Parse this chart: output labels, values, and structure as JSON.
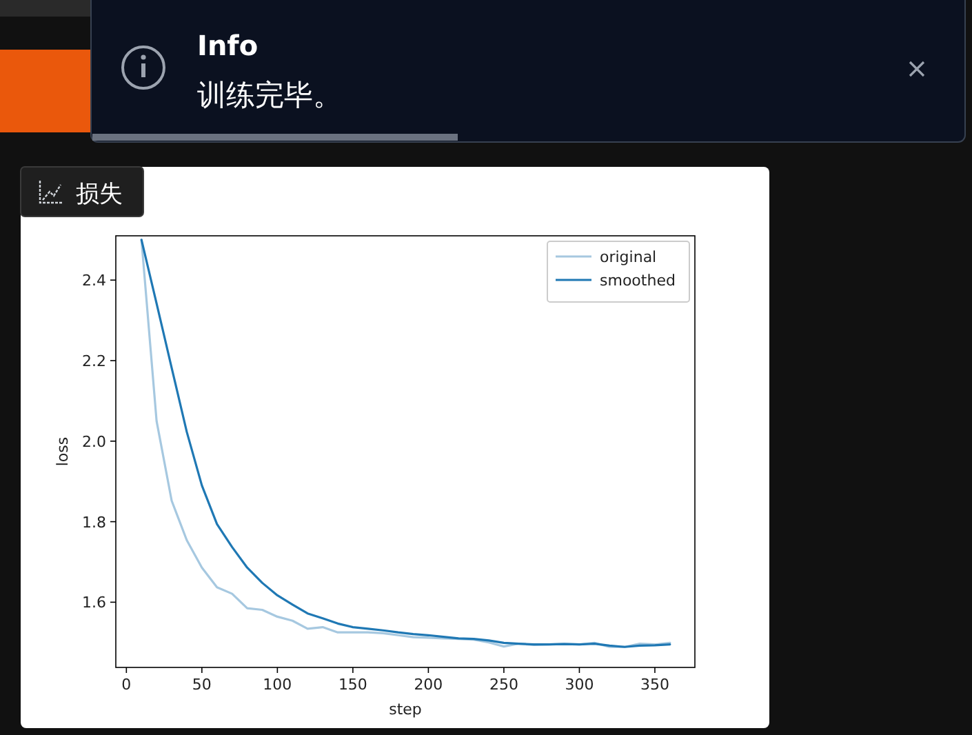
{
  "chart_data": {
    "type": "line",
    "title": "损失",
    "annotations": [
      "Info",
      "训练完毕。"
    ],
    "xlabel": "step",
    "ylabel": "loss",
    "x": [
      10,
      20,
      30,
      40,
      50,
      60,
      70,
      80,
      90,
      100,
      110,
      120,
      130,
      140,
      150,
      160,
      170,
      180,
      190,
      200,
      210,
      220,
      230,
      240,
      250,
      260,
      270,
      280,
      290,
      300,
      310,
      320,
      330,
      340,
      350,
      360
    ],
    "series": [
      {
        "name": "original",
        "color": "#a6c8e0",
        "values": [
          2.5,
          2.05,
          1.852,
          1.754,
          1.686,
          1.637,
          1.621,
          1.585,
          1.581,
          1.564,
          1.554,
          1.534,
          1.538,
          1.525,
          1.525,
          1.525,
          1.523,
          1.518,
          1.513,
          1.512,
          1.51,
          1.509,
          1.507,
          1.5,
          1.49,
          1.497,
          1.494,
          1.495,
          1.497,
          1.495,
          1.499,
          1.489,
          1.489,
          1.497,
          1.495,
          1.499
        ]
      },
      {
        "name": "smoothed",
        "color": "#1f78b4",
        "values": [
          2.5,
          2.342,
          2.182,
          2.023,
          1.89,
          1.794,
          1.737,
          1.686,
          1.648,
          1.617,
          1.594,
          1.572,
          1.56,
          1.547,
          1.538,
          1.534,
          1.53,
          1.525,
          1.521,
          1.518,
          1.514,
          1.51,
          1.509,
          1.505,
          1.499,
          1.497,
          1.495,
          1.495,
          1.496,
          1.495,
          1.497,
          1.492,
          1.489,
          1.492,
          1.493,
          1.495
        ]
      }
    ],
    "xlim": [
      -7,
      376.5
    ],
    "ylim": [
      1.438,
      2.51
    ],
    "xticks": [
      0,
      50,
      100,
      150,
      200,
      250,
      300,
      350
    ],
    "yticks": [
      1.6,
      1.8,
      {
        "value": 2.0,
        "label": "2.0"
      },
      2.2,
      2.4
    ],
    "grid": false,
    "legend": "top right"
  }
}
